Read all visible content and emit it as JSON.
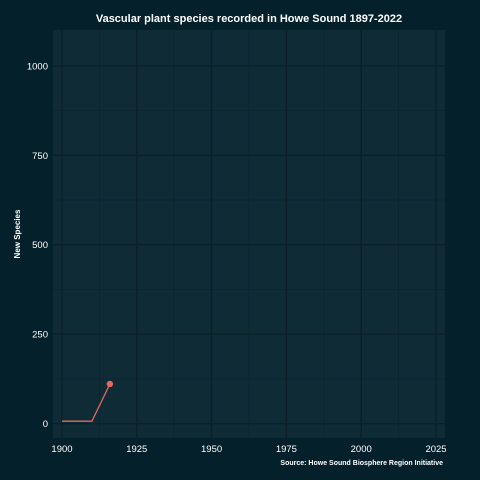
{
  "colors": {
    "background": "#04202a",
    "panel": "#0e2b36",
    "grid_major": "#0a1f27",
    "grid_minor": "#0b2530",
    "text": "#ffffff",
    "series": "#e4685e"
  },
  "chart_data": {
    "type": "line",
    "title": "Vascular plant species recorded in Howe Sound 1897-2022",
    "caption": "Source: Howe Sound Biosphere Region Initiative",
    "xlabel": "",
    "ylabel": "New Species",
    "xlim": [
      1897,
      2028
    ],
    "ylim": [
      -40,
      1100
    ],
    "x_ticks": [
      1900,
      1925,
      1950,
      1975,
      2000,
      2025
    ],
    "y_ticks": [
      0,
      250,
      500,
      750,
      1000
    ],
    "grid": true,
    "legend": "none",
    "series": [
      {
        "x": [
          1900,
          1910,
          1916
        ],
        "y": [
          7,
          7,
          111
        ],
        "end_marker": true
      }
    ]
  }
}
